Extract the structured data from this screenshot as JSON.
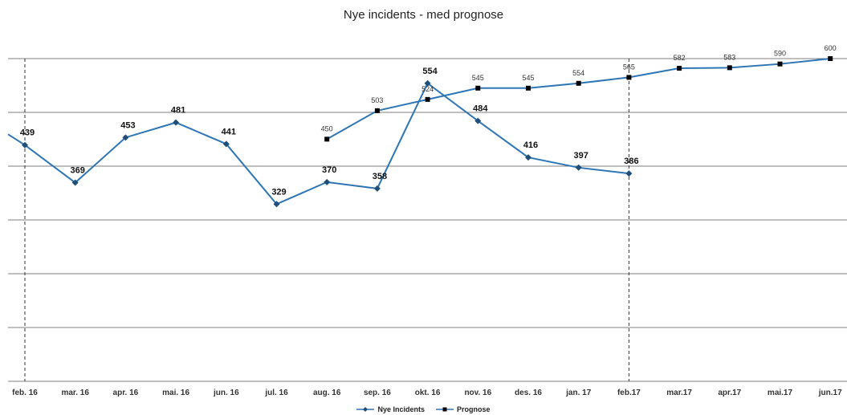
{
  "chart_data": {
    "type": "line",
    "title": "Nye incidents - med prognose",
    "categories": [
      "feb. 16",
      "mar. 16",
      "apr. 16",
      "mai. 16",
      "jun. 16",
      "jul. 16",
      "aug. 16",
      "sep. 16",
      "okt. 16",
      "nov. 16",
      "des. 16",
      "jan. 17",
      "feb.17",
      "mar.17",
      "apr.17",
      "mai.17",
      "jun.17"
    ],
    "ylim": [
      0,
      600
    ],
    "grid": true,
    "legend_position": "bottom",
    "series": [
      {
        "name": "Nye Incidents",
        "marker": "diamond",
        "color": "#2e75b6",
        "label_style": "bold",
        "values": [
          439,
          369,
          453,
          481,
          441,
          329,
          370,
          358,
          554,
          484,
          416,
          397,
          386,
          null,
          null,
          null,
          null
        ]
      },
      {
        "name": "Prognose",
        "marker": "square",
        "color": "#2e75b6",
        "label_style": "normal",
        "values": [
          null,
          null,
          null,
          null,
          null,
          null,
          450,
          503,
          524,
          545,
          545,
          554,
          565,
          582,
          583,
          590,
          600
        ]
      }
    ],
    "vertical_markers": [
      "feb. 16",
      "feb.17"
    ]
  }
}
